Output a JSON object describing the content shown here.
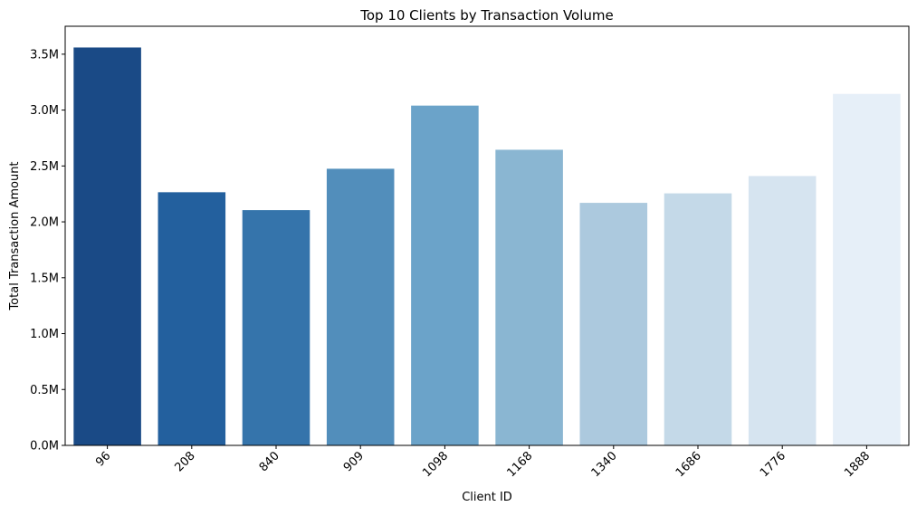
{
  "chart_data": {
    "type": "bar",
    "title": "Top 10 Clients by Transaction Volume",
    "xlabel": "Client ID",
    "ylabel": "Total Transaction Amount",
    "categories": [
      "96",
      "208",
      "840",
      "909",
      "1098",
      "1168",
      "1340",
      "1686",
      "1776",
      "1888"
    ],
    "values": [
      3560000,
      2265000,
      2105000,
      2475000,
      3040000,
      2645000,
      2170000,
      2255000,
      2410000,
      3145000
    ],
    "ylim": [
      0,
      3750000
    ],
    "yticks": [
      0,
      500000,
      1000000,
      1500000,
      2000000,
      2500000,
      3000000,
      3500000
    ],
    "ytick_labels": [
      "0.0M",
      "0.5M",
      "1.0M",
      "1.5M",
      "2.0M",
      "2.5M",
      "3.0M",
      "3.5M"
    ],
    "grid": false,
    "legend": "none",
    "x_tick_rotation_deg": 45,
    "bar_colors": [
      "#1a4a86",
      "#23609e",
      "#3574ab",
      "#528ebb",
      "#6ba3c9",
      "#8ab6d2",
      "#acc9de",
      "#c4d9e8",
      "#d6e4f0",
      "#e6eff8"
    ]
  }
}
